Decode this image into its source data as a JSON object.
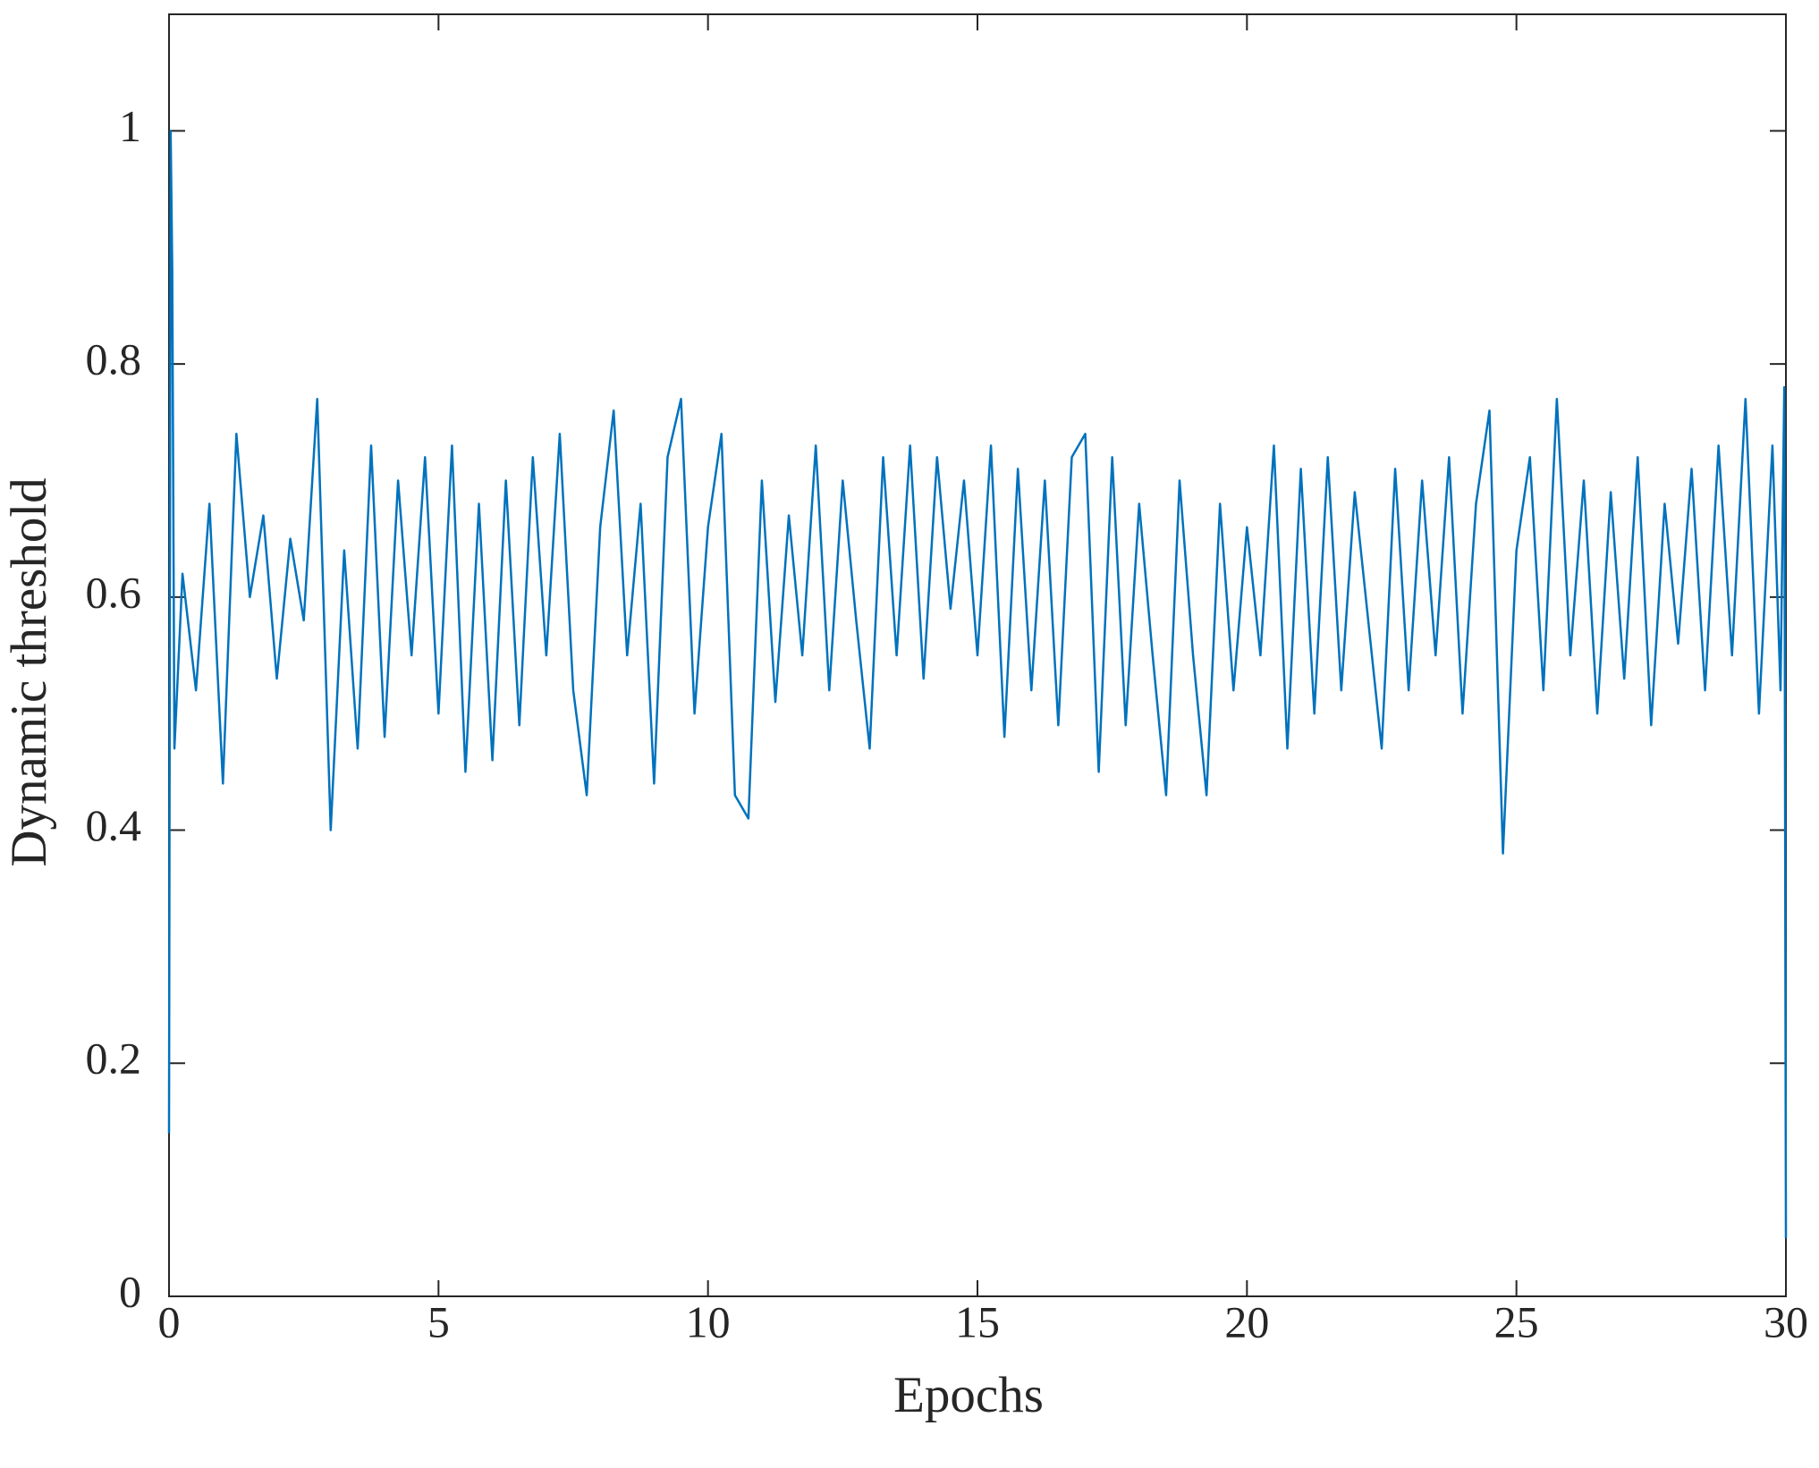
{
  "chart_data": {
    "type": "line",
    "xlabel": "Epochs",
    "ylabel": "Dynamic threshold",
    "xlim": [
      0,
      30
    ],
    "ylim": [
      0,
      1.1
    ],
    "xticks": [
      0,
      5,
      10,
      15,
      20,
      25,
      30
    ],
    "yticks": [
      0,
      0.2,
      0.4,
      0.6,
      0.8,
      1
    ],
    "series": [
      {
        "color": "#0072bd",
        "x": [
          0,
          0.03,
          0.06,
          0.1,
          0.25,
          0.5,
          0.75,
          1,
          1.25,
          1.5,
          1.75,
          2,
          2.25,
          2.5,
          2.75,
          3,
          3.25,
          3.5,
          3.75,
          4,
          4.25,
          4.5,
          4.75,
          5,
          5.25,
          5.5,
          5.75,
          6,
          6.25,
          6.5,
          6.75,
          7,
          7.25,
          7.5,
          7.75,
          8,
          8.25,
          8.5,
          8.75,
          9,
          9.25,
          9.5,
          9.75,
          10,
          10.25,
          10.5,
          10.75,
          11,
          11.25,
          11.5,
          11.75,
          12,
          12.25,
          12.5,
          12.75,
          13,
          13.25,
          13.5,
          13.75,
          14,
          14.25,
          14.5,
          14.75,
          15,
          15.25,
          15.5,
          15.75,
          16,
          16.25,
          16.5,
          16.75,
          17,
          17.25,
          17.5,
          17.75,
          18,
          18.25,
          18.5,
          18.75,
          19,
          19.25,
          19.5,
          19.75,
          20,
          20.25,
          20.5,
          20.75,
          21,
          21.25,
          21.5,
          21.75,
          22,
          22.25,
          22.5,
          22.75,
          23,
          23.25,
          23.5,
          23.75,
          24,
          24.25,
          24.5,
          24.75,
          25,
          25.25,
          25.5,
          25.75,
          26,
          26.25,
          26.5,
          26.75,
          27,
          27.25,
          27.5,
          27.75,
          28,
          28.25,
          28.5,
          28.75,
          29,
          29.25,
          29.5,
          29.75,
          29.9,
          29.97,
          30
        ],
        "values": [
          0.14,
          1.0,
          0.88,
          0.47,
          0.62,
          0.52,
          0.68,
          0.44,
          0.74,
          0.6,
          0.67,
          0.53,
          0.65,
          0.58,
          0.77,
          0.4,
          0.64,
          0.47,
          0.73,
          0.48,
          0.7,
          0.55,
          0.72,
          0.5,
          0.73,
          0.45,
          0.68,
          0.46,
          0.7,
          0.49,
          0.72,
          0.55,
          0.74,
          0.52,
          0.43,
          0.66,
          0.76,
          0.55,
          0.68,
          0.44,
          0.72,
          0.77,
          0.5,
          0.66,
          0.74,
          0.43,
          0.41,
          0.7,
          0.51,
          0.67,
          0.55,
          0.73,
          0.52,
          0.7,
          0.58,
          0.47,
          0.72,
          0.55,
          0.73,
          0.53,
          0.72,
          0.59,
          0.7,
          0.55,
          0.73,
          0.48,
          0.71,
          0.52,
          0.7,
          0.49,
          0.72,
          0.74,
          0.45,
          0.72,
          0.49,
          0.68,
          0.55,
          0.43,
          0.7,
          0.55,
          0.43,
          0.68,
          0.52,
          0.66,
          0.55,
          0.73,
          0.47,
          0.71,
          0.5,
          0.72,
          0.52,
          0.69,
          0.58,
          0.47,
          0.71,
          0.52,
          0.7,
          0.55,
          0.72,
          0.5,
          0.68,
          0.76,
          0.38,
          0.64,
          0.72,
          0.52,
          0.77,
          0.55,
          0.7,
          0.5,
          0.69,
          0.53,
          0.72,
          0.49,
          0.68,
          0.56,
          0.71,
          0.52,
          0.73,
          0.55,
          0.77,
          0.5,
          0.73,
          0.52,
          0.78,
          0.05
        ]
      }
    ]
  }
}
